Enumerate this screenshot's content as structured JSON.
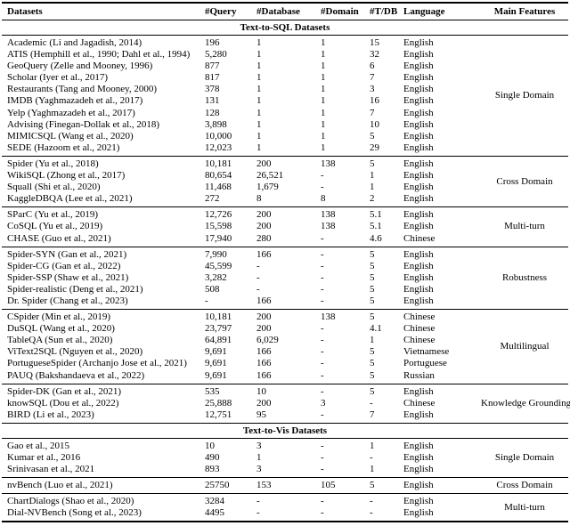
{
  "table": {
    "columns": [
      "Datasets",
      "#Query",
      "#Database",
      "#Domain",
      "#T/DB",
      "Language",
      "Main Features"
    ],
    "column_keys": [
      "datasets",
      "query",
      "database",
      "domain",
      "t-db",
      "language",
      "main-features"
    ],
    "sections": [
      {
        "title": "Text-to-SQL Datasets",
        "groups": [
          {
            "feature": "Single Domain",
            "rows": [
              [
                "Academic (Li and Jagadish, 2014)",
                "196",
                "1",
                "1",
                "15",
                "English"
              ],
              [
                "ATIS (Hemphill et al., 1990; Dahl et al., 1994)",
                "5,280",
                "1",
                "1",
                "32",
                "English"
              ],
              [
                "GeoQuery (Zelle and Mooney, 1996)",
                "877",
                "1",
                "1",
                "6",
                "English"
              ],
              [
                "Scholar (Iyer et al., 2017)",
                "817",
                "1",
                "1",
                "7",
                "English"
              ],
              [
                "Restaurants (Tang and Mooney, 2000)",
                "378",
                "1",
                "1",
                "3",
                "English"
              ],
              [
                "IMDB (Yaghmazadeh et al., 2017)",
                "131",
                "1",
                "1",
                "16",
                "English"
              ],
              [
                "Yelp (Yaghmazadeh et al., 2017)",
                "128",
                "1",
                "1",
                "7",
                "English"
              ],
              [
                "Advising (Finegan-Dollak et al., 2018)",
                "3,898",
                "1",
                "1",
                "10",
                "English"
              ],
              [
                "MIMICSQL (Wang et al., 2020)",
                "10,000",
                "1",
                "1",
                "5",
                "English"
              ],
              [
                "SEDE (Hazoom et al., 2021)",
                "12,023",
                "1",
                "1",
                "29",
                "English"
              ]
            ]
          },
          {
            "feature": "Cross Domain",
            "rows": [
              [
                "Spider (Yu et al., 2018)",
                "10,181",
                "200",
                "138",
                "5",
                "English"
              ],
              [
                "WikiSQL (Zhong et al., 2017)",
                "80,654",
                "26,521",
                "-",
                "1",
                "English"
              ],
              [
                "Squall (Shi et al., 2020)",
                "11,468",
                "1,679",
                "-",
                "1",
                "English"
              ],
              [
                "KaggleDBQA (Lee et al., 2021)",
                "272",
                "8",
                "8",
                "2",
                "English"
              ]
            ]
          },
          {
            "feature": "Multi-turn",
            "rows": [
              [
                "SParC (Yu et al., 2019)",
                "12,726",
                "200",
                "138",
                "5.1",
                "English"
              ],
              [
                "CoSQL (Yu et al., 2019)",
                "15,598",
                "200",
                "138",
                "5.1",
                "English"
              ],
              [
                "CHASE (Guo et al., 2021)",
                "17,940",
                "280",
                "-",
                "4.6",
                "Chinese"
              ]
            ]
          },
          {
            "feature": "Robustness",
            "rows": [
              [
                "Spider-SYN (Gan et al., 2021)",
                "7,990",
                "166",
                "-",
                "5",
                "English"
              ],
              [
                "Spider-CG (Gan et al., 2022)",
                "45,599",
                "-",
                "-",
                "5",
                "English"
              ],
              [
                "Spider-SSP (Shaw et al., 2021)",
                "3,282",
                "-",
                "-",
                "5",
                "English"
              ],
              [
                "Spider-realistic (Deng et al., 2021)",
                "508",
                "-",
                "-",
                "5",
                "English"
              ],
              [
                "Dr. Spider (Chang et al., 2023)",
                "-",
                "166",
                "-",
                "5",
                "English"
              ]
            ]
          },
          {
            "feature": "Multilingual",
            "rows": [
              [
                "CSpider (Min et al., 2019)",
                "10,181",
                "200",
                "138",
                "5",
                "Chinese"
              ],
              [
                "DuSQL (Wang et al., 2020)",
                "23,797",
                "200",
                "-",
                "4.1",
                "Chinese"
              ],
              [
                "TableQA (Sun et al., 2020)",
                "64,891",
                "6,029",
                "-",
                "1",
                "Chinese"
              ],
              [
                "ViText2SQL (Nguyen et al., 2020)",
                "9,691",
                "166",
                "-",
                "5",
                "Vietnamese"
              ],
              [
                "PortugueseSpider (Archanjo Jose et al., 2021)",
                "9,691",
                "166",
                "-",
                "5",
                "Portuguese"
              ],
              [
                "PAUQ (Bakshandaeva et al., 2022)",
                "9,691",
                "166",
                "-",
                "5",
                "Russian"
              ]
            ]
          },
          {
            "feature": "Knowledge Grounding",
            "rows": [
              [
                "Spider-DK (Gan et al., 2021)",
                "535",
                "10",
                "-",
                "5",
                "English"
              ],
              [
                "knowSQL (Dou et al., 2022)",
                "25,888",
                "200",
                "3",
                "-",
                "Chinese"
              ],
              [
                "BIRD (Li et al., 2023)",
                "12,751",
                "95",
                "-",
                "7",
                "English"
              ]
            ]
          }
        ]
      },
      {
        "title": "Text-to-Vis Datasets",
        "groups": [
          {
            "feature": "Single Domain",
            "rows": [
              [
                "Gao et al., 2015",
                "10",
                "3",
                "-",
                "1",
                "English"
              ],
              [
                "Kumar et al., 2016",
                "490",
                "1",
                "-",
                "-",
                "English"
              ],
              [
                "Srinivasan et al., 2021",
                "893",
                "3",
                "-",
                "1",
                "English"
              ]
            ]
          },
          {
            "feature": "Cross Domain",
            "rows": [
              [
                "nvBench (Luo et al., 2021)",
                "25750",
                "153",
                "105",
                "5",
                "English"
              ]
            ]
          },
          {
            "feature": "Multi-turn",
            "rows": [
              [
                "ChartDialogs (Shao et al., 2020)",
                "3284",
                "-",
                "-",
                "-",
                "English"
              ],
              [
                "Dial-NVBench (Song et al., 2023)",
                "4495",
                "-",
                "-",
                "-",
                "English"
              ]
            ]
          }
        ]
      }
    ]
  }
}
